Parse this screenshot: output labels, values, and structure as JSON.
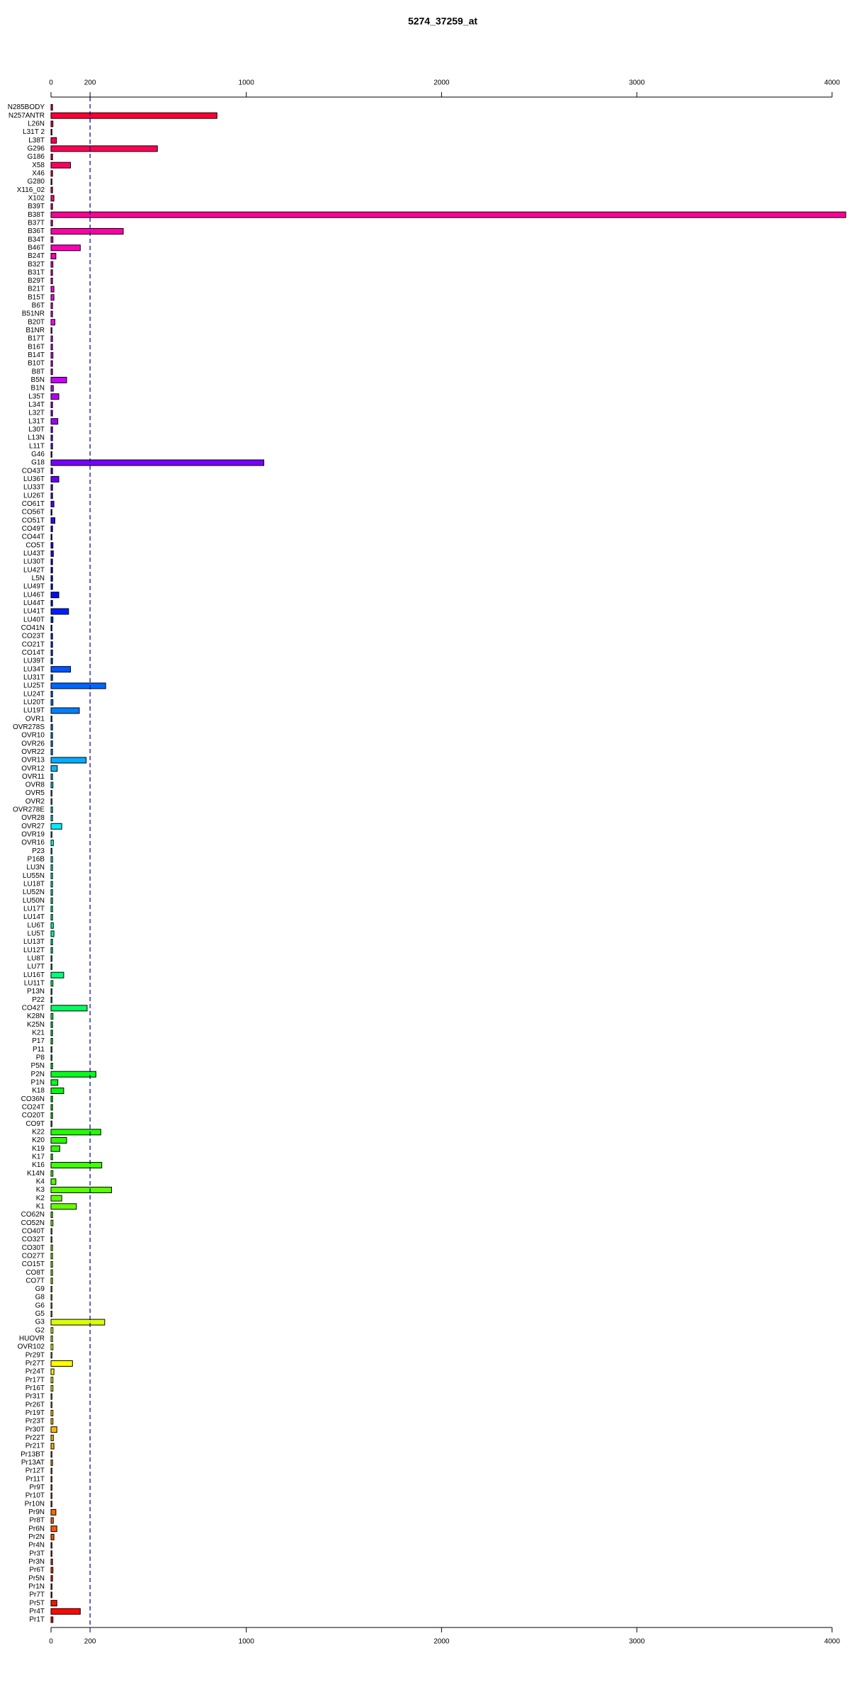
{
  "chart_data": {
    "type": "hbar",
    "title": "5274_37259_at",
    "categories": [
      "N285BODY",
      "N257ANTR",
      "L26N",
      "L31T 2",
      "L38T",
      "G296",
      "G186",
      "X58",
      "X46",
      "G280",
      "X116_02",
      "X102",
      "B39T",
      "B38T",
      "B37T",
      "B36T",
      "B34T",
      "B46T",
      "B24T",
      "B32T",
      "B31T",
      "B29T",
      "B21T",
      "B15T",
      "B6T",
      "B51NR",
      "B20T",
      "B1NR",
      "B17T",
      "B16T",
      "B14T",
      "B10T",
      "B8T",
      "B5N",
      "B1N",
      "L35T",
      "L34T",
      "L32T",
      "L31T",
      "L30T",
      "L13N",
      "L11T",
      "G46",
      "G18",
      "CO43T",
      "LU36T",
      "LU33T",
      "LU26T",
      "CO61T",
      "CO56T",
      "CO51T",
      "CO49T",
      "CO44T",
      "CO5T",
      "LU43T",
      "LU30T",
      "LU42T",
      "L5N",
      "LU49T",
      "LU46T",
      "LU44T",
      "LU41T",
      "LU40T",
      "CO41N",
      "CO23T",
      "CO21T",
      "CO14T",
      "LU39T",
      "LU34T",
      "LU31T",
      "LU25T",
      "LU24T",
      "LU20T",
      "LU19T",
      "OVR1",
      "OVR278S",
      "OVR10",
      "OVR26",
      "OVR22",
      "OVR13",
      "OVR12",
      "OVR11",
      "OVR8",
      "OVR5",
      "OVR2",
      "OVR278E",
      "OVR28",
      "OVR27",
      "OVR19",
      "OVR16",
      "P23",
      "P16B",
      "LU3N",
      "LU55N",
      "LU18T",
      "LU52N",
      "LU50N",
      "LU17T",
      "LU14T",
      "LU6T",
      "LU5T",
      "LU13T",
      "LU12T",
      "LU8T",
      "LU7T",
      "LU16T",
      "LU11T",
      "P13N",
      "P22",
      "CO42T",
      "K28N",
      "K25N",
      "K21",
      "P17",
      "P11",
      "P8",
      "P5N",
      "P2N",
      "P1N",
      "K18",
      "CO36N",
      "CO24T",
      "CO20T",
      "CO9T",
      "K22",
      "K20",
      "K19",
      "K17",
      "K16",
      "K14N",
      "K4",
      "K3",
      "K2",
      "K1",
      "CO62N",
      "CO52N",
      "CO40T",
      "CO32T",
      "CO30T",
      "CO27T",
      "CO15T",
      "CO8T",
      "CO7T",
      "G9",
      "G8",
      "G6",
      "G5",
      "G3",
      "G2",
      "HUOVR",
      "OVR102",
      "Pr29T",
      "Pr27T",
      "Pr24T",
      "Pr17T",
      "Pr16T",
      "Pr31T",
      "Pr26T",
      "Pr19T",
      "Pr23T",
      "Pr30T",
      "Pr22T",
      "Pr21T",
      "Pr13BT",
      "Pr13AT",
      "Pr12T",
      "Pr11T",
      "Pr9T",
      "Pr10T",
      "Pr10N",
      "Pr9N",
      "Pr8T",
      "Pr6N",
      "Pr2N",
      "Pr4N",
      "Pr3T",
      "Pr3N",
      "Pr6T",
      "Pr5N",
      "Pr1N",
      "Pr7T",
      "Pr5T",
      "Pr4T",
      "Pr1T"
    ],
    "values": [
      8,
      850,
      10,
      5,
      28,
      545,
      8,
      100,
      8,
      5,
      8,
      15,
      8,
      4070,
      8,
      370,
      10,
      150,
      25,
      10,
      8,
      8,
      15,
      15,
      8,
      8,
      20,
      5,
      8,
      8,
      10,
      8,
      8,
      80,
      12,
      40,
      8,
      8,
      35,
      8,
      8,
      8,
      5,
      1090,
      8,
      40,
      8,
      8,
      15,
      5,
      20,
      8,
      5,
      10,
      12,
      8,
      8,
      8,
      8,
      40,
      8,
      90,
      10,
      5,
      8,
      8,
      8,
      8,
      100,
      8,
      280,
      8,
      10,
      145,
      5,
      8,
      8,
      8,
      8,
      180,
      32,
      8,
      10,
      5,
      5,
      8,
      8,
      55,
      5,
      12,
      5,
      8,
      8,
      8,
      8,
      8,
      8,
      8,
      8,
      12,
      15,
      8,
      8,
      5,
      5,
      65,
      10,
      5,
      5,
      185,
      10,
      8,
      8,
      8,
      5,
      5,
      8,
      230,
      35,
      65,
      8,
      8,
      8,
      5,
      255,
      80,
      45,
      8,
      260,
      10,
      25,
      310,
      55,
      130,
      8,
      10,
      5,
      5,
      8,
      8,
      8,
      8,
      8,
      5,
      5,
      5,
      5,
      275,
      10,
      8,
      10,
      5,
      110,
      15,
      10,
      10,
      5,
      5,
      10,
      10,
      30,
      12,
      15,
      5,
      8,
      5,
      5,
      5,
      5,
      5,
      25,
      12,
      30,
      15,
      5,
      5,
      8,
      10,
      8,
      5,
      5,
      30,
      150,
      10
    ],
    "colors": [
      "hsl(350,100%,50%)",
      "hsl(348,100%,50%)",
      "hsl(346,100%,50%)",
      "hsl(344,100%,50%)",
      "hsl(342,100%,50%)",
      "hsl(340,100%,50%)",
      "hsl(339,100%,50%)",
      "hsl(337,100%,50%)",
      "hsl(335,100%,50%)",
      "hsl(333,100%,50%)",
      "hsl(331,100%,50%)",
      "hsl(329,100%,50%)",
      "hsl(327,100%,50%)",
      "hsl(325,100%,50%)",
      "hsl(323,100%,50%)",
      "hsl(321,100%,50%)",
      "hsl(319,100%,50%)",
      "hsl(317,100%,50%)",
      "hsl(316,100%,50%)",
      "hsl(314,100%,50%)",
      "hsl(312,100%,50%)",
      "hsl(310,100%,50%)",
      "hsl(308,100%,50%)",
      "hsl(306,100%,50%)",
      "hsl(304,100%,50%)",
      "hsl(302,100%,50%)",
      "hsl(300,100%,50%)",
      "hsl(298,100%,50%)",
      "hsl(296,100%,50%)",
      "hsl(295,100%,50%)",
      "hsl(293,100%,50%)",
      "hsl(291,100%,50%)",
      "hsl(289,100%,50%)",
      "hsl(287,100%,50%)",
      "hsl(285,100%,50%)",
      "hsl(283,100%,50%)",
      "hsl(281,100%,50%)",
      "hsl(279,100%,50%)",
      "hsl(277,100%,50%)",
      "hsl(275,100%,50%)",
      "hsl(273,100%,50%)",
      "hsl(272,100%,50%)",
      "hsl(270,100%,50%)",
      "hsl(268,100%,50%)",
      "hsl(266,100%,50%)",
      "hsl(264,100%,50%)",
      "hsl(262,100%,50%)",
      "hsl(260,100%,50%)",
      "hsl(258,100%,50%)",
      "hsl(256,100%,50%)",
      "hsl(254,100%,50%)",
      "hsl(252,100%,50%)",
      "hsl(251,100%,50%)",
      "hsl(249,100%,50%)",
      "hsl(247,100%,50%)",
      "hsl(245,100%,50%)",
      "hsl(243,100%,50%)",
      "hsl(241,100%,50%)",
      "hsl(239,100%,50%)",
      "hsl(237,100%,50%)",
      "hsl(235,100%,50%)",
      "hsl(233,100%,50%)",
      "hsl(231,100%,50%)",
      "hsl(230,100%,50%)",
      "hsl(228,100%,50%)",
      "hsl(226,100%,50%)",
      "hsl(224,100%,50%)",
      "hsl(222,100%,50%)",
      "hsl(220,100%,50%)",
      "hsl(218,100%,50%)",
      "hsl(216,100%,50%)",
      "hsl(214,100%,50%)",
      "hsl(212,100%,50%)",
      "hsl(210,100%,50%)",
      "hsl(208,100%,50%)",
      "hsl(207,100%,50%)",
      "hsl(205,100%,50%)",
      "hsl(203,100%,50%)",
      "hsl(201,100%,50%)",
      "hsl(199,100%,50%)",
      "hsl(197,100%,50%)",
      "hsl(195,100%,50%)",
      "hsl(193,100%,50%)",
      "hsl(191,100%,50%)",
      "hsl(189,100%,50%)",
      "hsl(187,100%,50%)",
      "hsl(186,100%,50%)",
      "hsl(184,100%,50%)",
      "hsl(182,100%,50%)",
      "hsl(180,100%,50%)",
      "hsl(178,100%,50%)",
      "hsl(176,100%,50%)",
      "hsl(174,100%,50%)",
      "hsl(172,100%,50%)",
      "hsl(170,100%,50%)",
      "hsl(168,100%,50%)",
      "hsl(166,100%,50%)",
      "hsl(164,100%,50%)",
      "hsl(163,100%,50%)",
      "hsl(161,100%,50%)",
      "hsl(159,100%,50%)",
      "hsl(157,100%,50%)",
      "hsl(155,100%,50%)",
      "hsl(153,100%,50%)",
      "hsl(151,100%,50%)",
      "hsl(149,100%,50%)",
      "hsl(147,100%,50%)",
      "hsl(145,100%,50%)",
      "hsl(143,100%,50%)",
      "hsl(142,100%,50%)",
      "hsl(140,100%,50%)",
      "hsl(138,100%,50%)",
      "hsl(136,100%,50%)",
      "hsl(134,100%,50%)",
      "hsl(132,100%,50%)",
      "hsl(130,100%,50%)",
      "hsl(128,100%,50%)",
      "hsl(126,100%,50%)",
      "hsl(124,100%,50%)",
      "hsl(122,100%,50%)",
      "hsl(120,100%,50%)",
      "hsl(119,100%,50%)",
      "hsl(117,100%,50%)",
      "hsl(115,100%,50%)",
      "hsl(113,100%,50%)",
      "hsl(111,100%,50%)",
      "hsl(109,100%,50%)",
      "hsl(107,100%,50%)",
      "hsl(105,100%,50%)",
      "hsl(103,100%,50%)",
      "hsl(101,100%,50%)",
      "hsl(99,100%,50%)",
      "hsl(98,100%,50%)",
      "hsl(96,100%,50%)",
      "hsl(94,100%,50%)",
      "hsl(92,100%,50%)",
      "hsl(90,100%,50%)",
      "hsl(88,100%,50%)",
      "hsl(86,100%,50%)",
      "hsl(84,100%,50%)",
      "hsl(82,100%,50%)",
      "hsl(80,100%,50%)",
      "hsl(78,100%,50%)",
      "hsl(77,100%,50%)",
      "hsl(75,100%,50%)",
      "hsl(73,100%,50%)",
      "hsl(71,100%,50%)",
      "hsl(69,100%,50%)",
      "hsl(67,100%,50%)",
      "hsl(65,100%,50%)",
      "hsl(63,100%,50%)",
      "hsl(61,100%,50%)",
      "hsl(59,100%,50%)",
      "hsl(57,100%,50%)",
      "hsl(55,100%,50%)",
      "hsl(54,100%,50%)",
      "hsl(52,100%,50%)",
      "hsl(50,100%,50%)",
      "hsl(48,100%,50%)",
      "hsl(46,100%,50%)",
      "hsl(44,100%,50%)",
      "hsl(42,100%,50%)",
      "hsl(40,100%,50%)",
      "hsl(38,100%,50%)",
      "hsl(36,100%,50%)",
      "hsl(34,100%,50%)",
      "hsl(33,100%,50%)",
      "hsl(31,100%,50%)",
      "hsl(29,100%,50%)",
      "hsl(27,100%,50%)",
      "hsl(25,100%,50%)",
      "hsl(23,100%,50%)",
      "hsl(21,100%,50%)",
      "hsl(19,100%,50%)",
      "hsl(17,100%,50%)",
      "hsl(15,100%,50%)",
      "hsl(13,100%,50%)",
      "hsl(11,100%,50%)",
      "hsl(10,100%,50%)",
      "hsl(8,100%,50%)",
      "hsl(6,100%,50%)",
      "hsl(4,100%,50%)",
      "hsl(2,100%,50%)",
      "hsl(0,100%,50%)"
    ],
    "xlim": [
      0,
      4070
    ],
    "xticks": [
      0,
      200,
      1000,
      2000,
      3000,
      4000
    ],
    "reference_line": 200,
    "reference_line_color": "#00008b"
  }
}
